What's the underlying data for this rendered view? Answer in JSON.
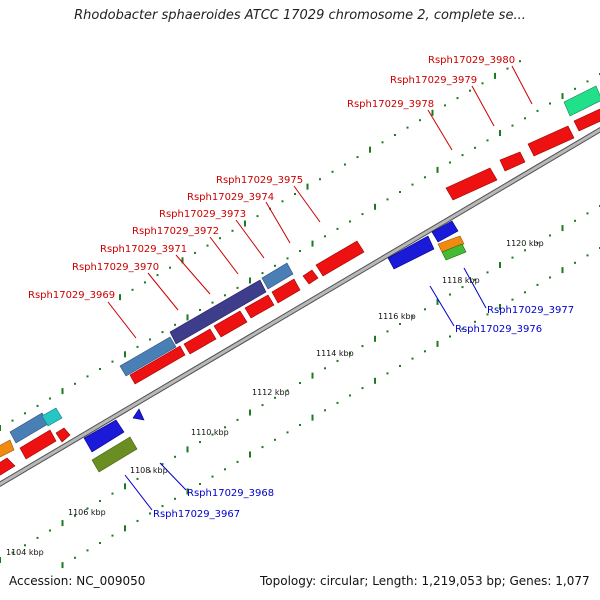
{
  "title": "Rhodobacter sphaeroides ATCC 17029 chromosome 2, complete se...",
  "footer": {
    "accession": "Accession: NC_009050",
    "summary": "Topology: circular; Length: 1,219,053 bp; Genes: 1,077"
  },
  "colors": {
    "backbone": "#909090",
    "tick": "#1d7a1d",
    "label_forward": "#cc0000",
    "label_reverse": "#0000cc",
    "gene_red": "#ee1111",
    "gene_blue": "#1a1ad8",
    "gene_steel": "#4a7fb5",
    "gene_indigo": "#3d3d8c",
    "gene_teal": "#27c6c6",
    "gene_mint": "#22e08a",
    "gene_orange": "#f08a10",
    "gene_green": "#44bb33",
    "gene_olive": "#6b8e23"
  },
  "kbp_labels": [
    "1104 kbp",
    "1106 kbp",
    "1108 kbp",
    "1110 kbp",
    "1112 kbp",
    "1114 kbp",
    "1116 kbp",
    "1118 kbp",
    "1120 kbp"
  ],
  "labels_forward": [
    "Rsph17029_3969",
    "Rsph17029_3970",
    "Rsph17029_3971",
    "Rsph17029_3972",
    "Rsph17029_3973",
    "Rsph17029_3974",
    "Rsph17029_3975",
    "Rsph17029_3978",
    "Rsph17029_3979",
    "Rsph17029_3980"
  ],
  "labels_reverse": [
    "Rsph17029_3967",
    "Rsph17029_3968",
    "Rsph17029_3976",
    "Rsph17029_3977"
  ]
}
